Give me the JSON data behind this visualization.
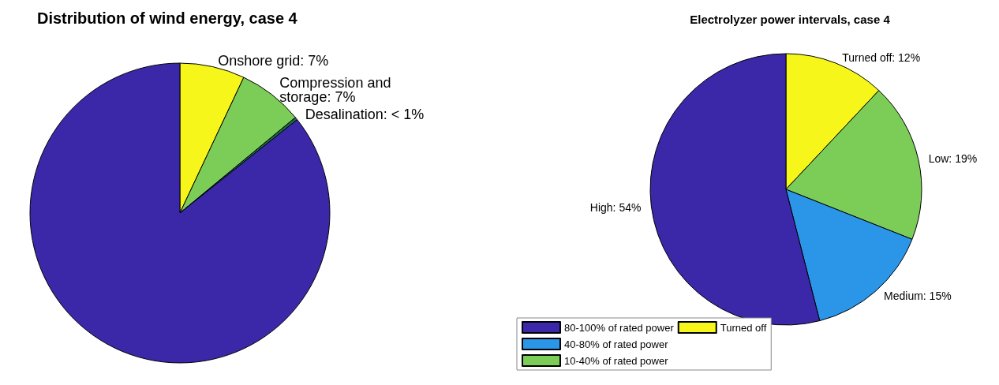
{
  "chart_data": [
    {
      "type": "pie",
      "title": "Distribution of wind energy, case 4",
      "categories": [
        "Onshore grid",
        "Compression and storage",
        "Desalination",
        null
      ],
      "values": [
        7,
        7,
        0.3,
        85.7
      ],
      "colors": [
        "#f6f61a",
        "#7ccc58",
        "#1c6b4a",
        "#3a28a8"
      ],
      "value_labels": [
        "7%",
        "7%",
        "< 1%",
        null
      ],
      "legend": false
    },
    {
      "type": "pie",
      "title": "Electrolyzer power intervals, case 4",
      "categories": [
        "Turned off",
        "10-40% of rated power",
        "40-80% of rated power",
        "80-100% of rated power"
      ],
      "values": [
        12,
        19,
        15,
        54
      ],
      "colors": [
        "#f6f61a",
        "#7ccc58",
        "#2b95e8",
        "#3a28a8"
      ],
      "value_labels": [
        "Turned off: 12%",
        "Low: 19%",
        "Medium: 15%",
        "High: 54%"
      ],
      "legend": "bottom left"
    }
  ]
}
